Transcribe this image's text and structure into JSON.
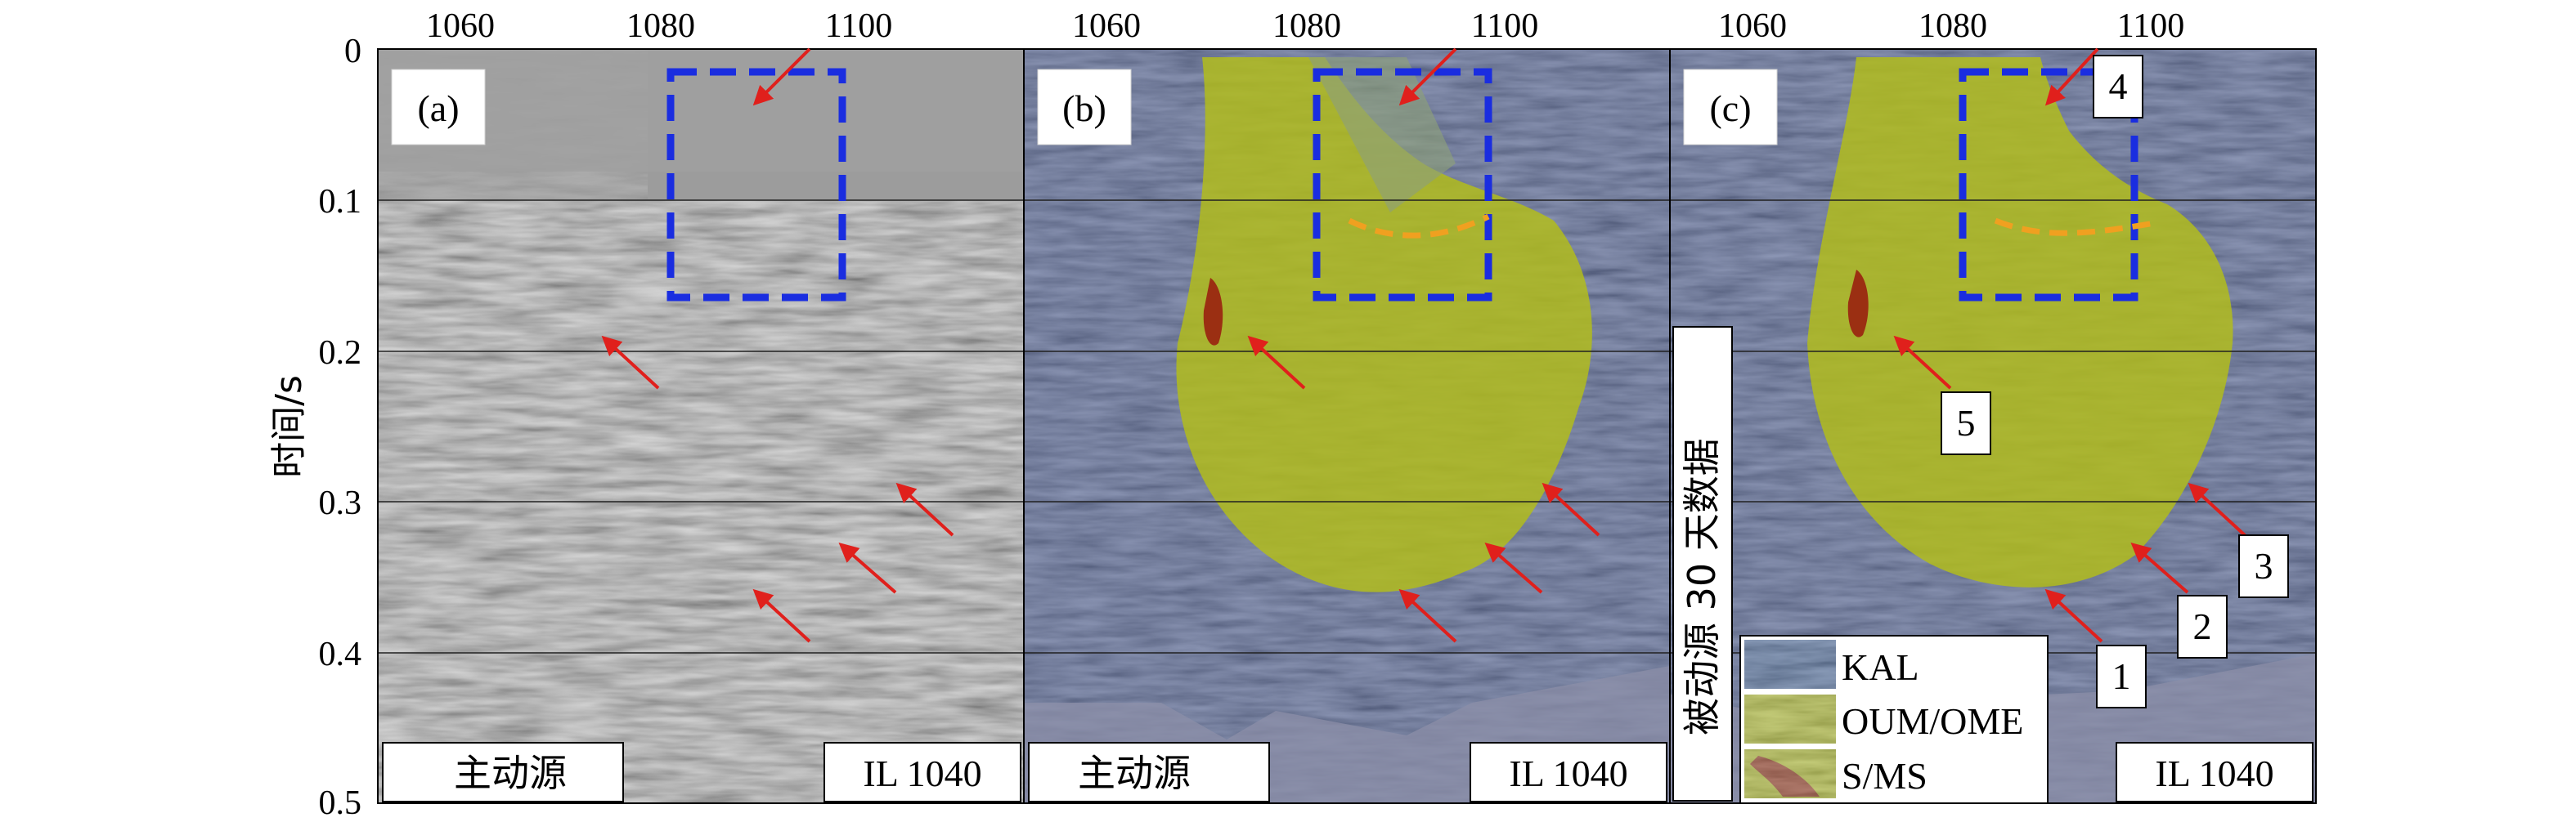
{
  "axes": {
    "x_tick_labels": [
      "1060",
      "1080",
      "1100"
    ],
    "y_tick_labels": [
      "0",
      "0.1",
      "0.2",
      "0.3",
      "0.4",
      "0.5"
    ],
    "y_label": "时间/s"
  },
  "panels": [
    {
      "tag": "(a)",
      "source_label": "主动源",
      "inline_label": "IL 1040"
    },
    {
      "tag": "(b)",
      "source_label": "主动源",
      "inline_label": "IL 1040"
    },
    {
      "tag": "(c)",
      "inline_label": "IL 1040",
      "vertical_label": "被动源 30 天数据"
    }
  ],
  "legend": [
    {
      "label": "KAL",
      "color": "#3f5f93"
    },
    {
      "label": "OUM/OME",
      "color": "#a8b520"
    },
    {
      "label": "S/MS",
      "color": "#8a2a10"
    }
  ],
  "annotation_numbers": [
    "1",
    "2",
    "3",
    "4",
    "5"
  ],
  "colors": {
    "arrow": "#e0201c",
    "box_dash": "#1a2de0",
    "orange_dash": "#f0a020",
    "grid": "#202020",
    "panel_a_base": "#9c9c9c",
    "panel_bc_base": "#3d4f86",
    "ore_body": "#b1bc1c"
  }
}
